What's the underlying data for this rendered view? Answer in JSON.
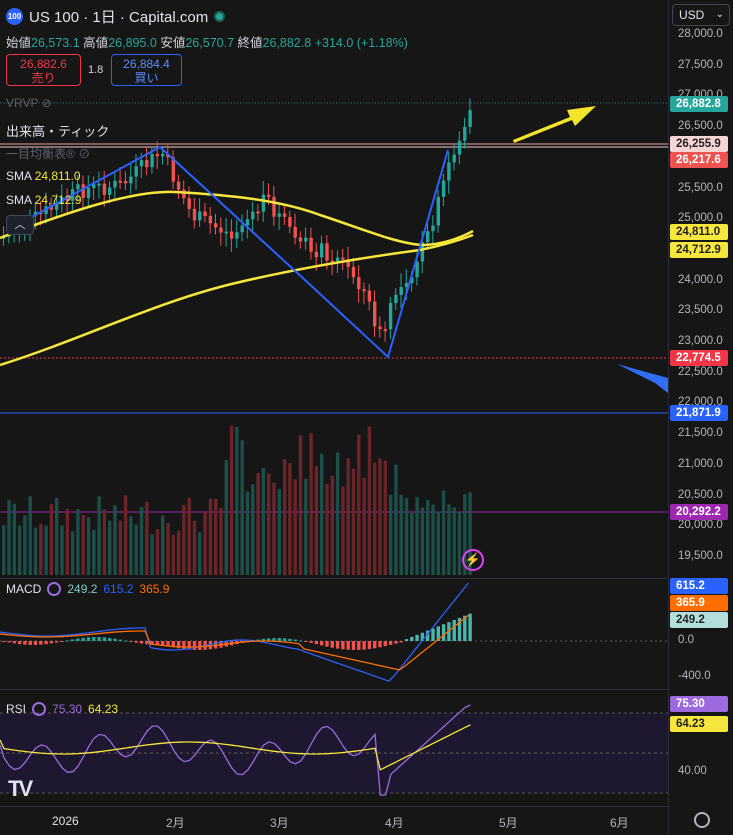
{
  "header": {
    "logo_text": "100",
    "title": "US 100 · 1日 · Capital.com"
  },
  "ohlc": {
    "open_label": "始値",
    "open": "26,573.1",
    "high_label": "高値",
    "high": "26,895.0",
    "low_label": "安値",
    "low": "26,570.7",
    "close_label": "終値",
    "close": "26,882.8",
    "change": "+314.0 (+1.18%)"
  },
  "trade": {
    "sell_price": "26,882.6",
    "sell_label": "売り",
    "spread": "1.8",
    "buy_price": "26,884.4",
    "buy_label": "買い"
  },
  "overlays": {
    "vrvp": "VRVP",
    "volume_tick": "出来高・ティック",
    "ichimoku": "一目均衡表®",
    "sma1_label": "SMA",
    "sma1_value": "24,811.0",
    "sma2_label": "SMA",
    "sma2_value": "24,712.9"
  },
  "currency": "USD",
  "price_axis": [
    "28,000.0",
    "27,500.0",
    "27,000.0",
    "26,500.0",
    "26,000.0",
    "25,500.0",
    "25,000.0",
    "24,500.0",
    "24,000.0",
    "23,500.0",
    "23,000.0",
    "22,500.0",
    "22,000.0",
    "21,500.0",
    "21,000.0",
    "20,500.0",
    "20,000.0",
    "19,500.0"
  ],
  "price_tags": {
    "last": "26,882.8",
    "t1": "26,255.9",
    "t2": "26,217.6",
    "sma1": "24,811.0",
    "sma2": "24,712.9",
    "red_line": "22,774.5",
    "blue_line": "21,871.9",
    "purple_line": "20,292.2"
  },
  "macd": {
    "label": "MACD",
    "v1": "249.2",
    "v2": "615.2",
    "v3": "365.9",
    "axis": [
      "0.0",
      "-400.0"
    ],
    "tags": [
      "615.2",
      "365.9",
      "249.2"
    ]
  },
  "rsi": {
    "label": "RSI",
    "v1": "75.30",
    "v2": "64.23",
    "axis": [
      "40.00"
    ],
    "tags": [
      "75.30",
      "64.23"
    ]
  },
  "x_axis": [
    "2026",
    "2月",
    "3月",
    "4月",
    "5月",
    "6月"
  ],
  "colors": {
    "up": "#26a69a",
    "down": "#ef5350",
    "sma": "#f7e63b",
    "trend": "#2962ff",
    "arrow_yellow": "#f5e52a",
    "arrow_blue": "#2f6ef5"
  }
}
